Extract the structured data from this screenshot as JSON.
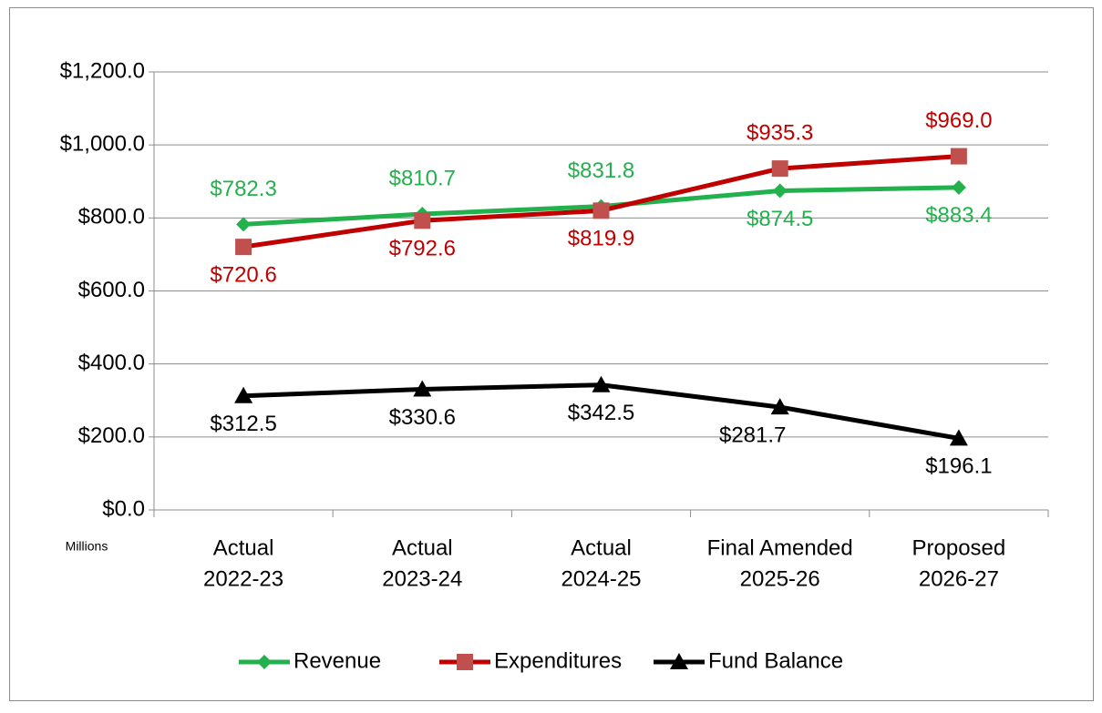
{
  "chart_data": {
    "type": "line",
    "annotation": "Millions",
    "categories": [
      [
        "Actual",
        "2022-23"
      ],
      [
        "Actual",
        "2023-24"
      ],
      [
        "Actual",
        "2024-25"
      ],
      [
        "Final Amended",
        "2025-26"
      ],
      [
        "Proposed",
        "2026-27"
      ]
    ],
    "series": [
      {
        "name": "Revenue",
        "color": "#22b14c",
        "label_color": "#22b14c",
        "marker": "diamond",
        "values": [
          782.3,
          810.7,
          831.8,
          874.5,
          883.4
        ],
        "value_labels": [
          "$782.3",
          "$810.7",
          "$831.8",
          "$874.5",
          "$883.4"
        ]
      },
      {
        "name": "Expenditures",
        "color": "#c00000",
        "marker_color": "#c0504d",
        "label_color": "#c00000",
        "marker": "square",
        "values": [
          720.6,
          792.6,
          819.9,
          935.3,
          969.0
        ],
        "value_labels": [
          "$720.6",
          "$792.6",
          "$819.9",
          "$935.3",
          "$969.0"
        ]
      },
      {
        "name": "Fund Balance",
        "color": "#000000",
        "label_color": "#000000",
        "marker": "triangle",
        "values": [
          312.5,
          330.6,
          342.5,
          281.7,
          196.1
        ],
        "value_labels": [
          "$312.5",
          "$330.6",
          "$342.5",
          "$281.7",
          "$196.1"
        ]
      }
    ],
    "ylim": [
      0,
      1200
    ],
    "yticks": [
      {
        "value": 0,
        "label": "$0.0"
      },
      {
        "value": 200,
        "label": "$200.0"
      },
      {
        "value": 400,
        "label": "$400.0"
      },
      {
        "value": 600,
        "label": "$600.0"
      },
      {
        "value": 800,
        "label": "$800.0"
      },
      {
        "value": 1000,
        "label": "$1,000.0"
      },
      {
        "value": 1200,
        "label": "$1,200.0"
      }
    ],
    "grid": true,
    "legend": "bottom"
  }
}
